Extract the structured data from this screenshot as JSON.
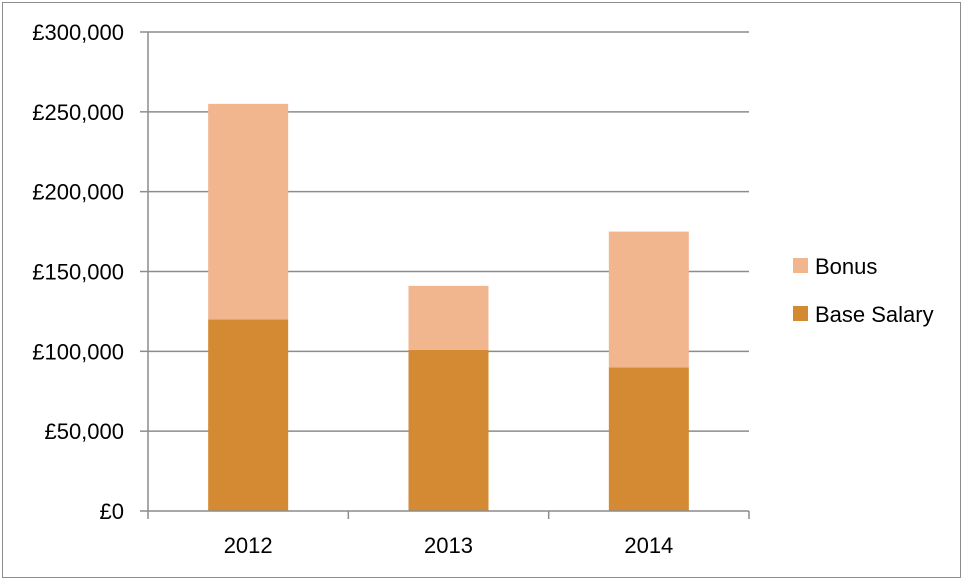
{
  "chart_data": {
    "type": "bar",
    "stacked": true,
    "title": "",
    "xlabel": "",
    "ylabel": "",
    "categories": [
      "2012",
      "2013",
      "2014"
    ],
    "series": [
      {
        "name": "Base Salary",
        "values": [
          120000,
          101000,
          90000
        ],
        "color": "#d48a32"
      },
      {
        "name": "Bonus",
        "values": [
          135000,
          40000,
          85000
        ],
        "color": "#f2b68f"
      }
    ],
    "ylim": [
      0,
      300000
    ],
    "yticks": [
      0,
      50000,
      100000,
      150000,
      200000,
      250000,
      300000
    ],
    "ytick_labels": [
      "£0",
      "£50,000",
      "£100,000",
      "£150,000",
      "£200,000",
      "£250,000",
      "£300,000"
    ],
    "grid": true,
    "legend": {
      "position": "right",
      "entries": [
        "Bonus",
        "Base Salary"
      ]
    }
  }
}
